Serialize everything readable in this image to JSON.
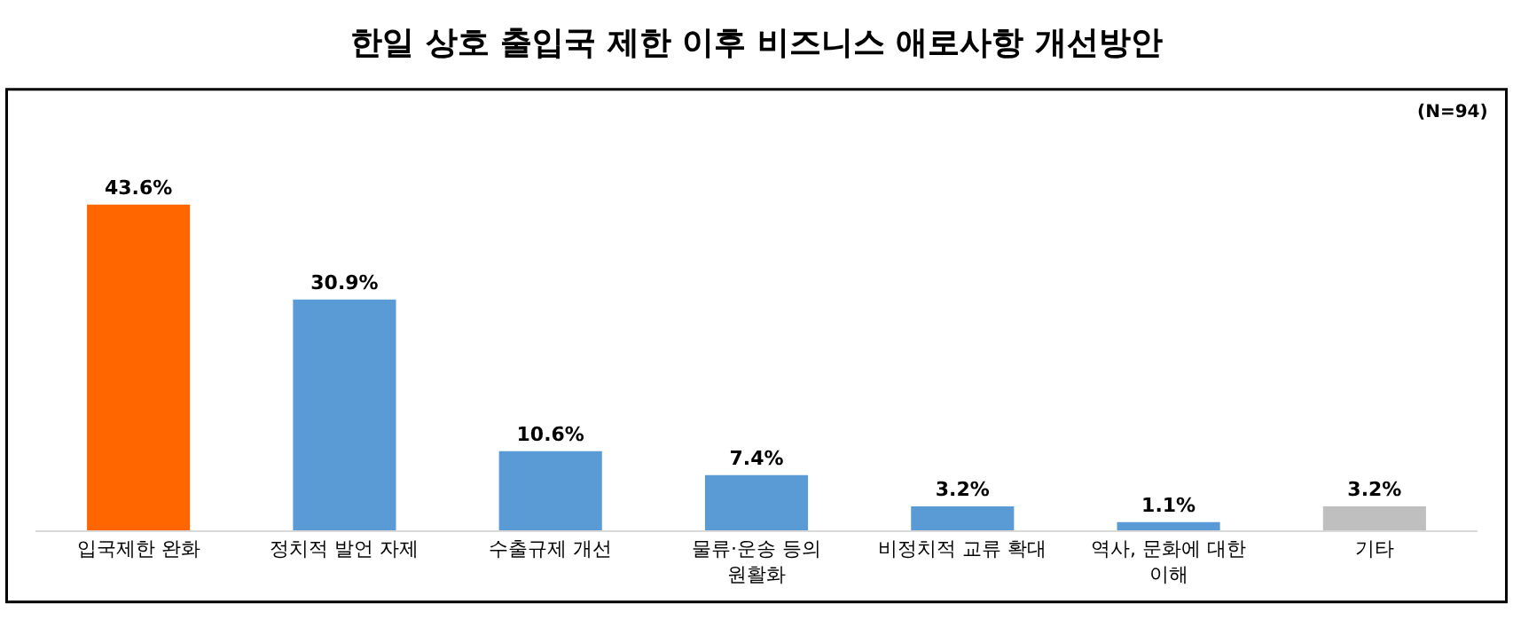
{
  "chart_data": {
    "type": "bar",
    "title": "한일 상호 출입국 제한 이후 비즈니스 애로사항 개선방안",
    "categories": [
      "입국제한 완화",
      "정치적 발언 자제",
      "수출규제 개선",
      "물류·운송 등의 원활화",
      "비정치적 교류 확대",
      "역사, 문화에 대한 이해",
      "기타"
    ],
    "values": [
      43.6,
      30.9,
      10.6,
      7.4,
      3.2,
      1.1,
      3.2
    ],
    "value_labels": [
      "43.6%",
      "30.9%",
      "10.6%",
      "7.4%",
      "3.2%",
      "1.1%",
      "3.2%"
    ],
    "colors": [
      "#ff6600",
      "#5b9bd5",
      "#5b9bd5",
      "#5b9bd5",
      "#5b9bd5",
      "#5b9bd5",
      "#bfbfbf"
    ],
    "annotations": [
      "(N=94)"
    ]
  }
}
